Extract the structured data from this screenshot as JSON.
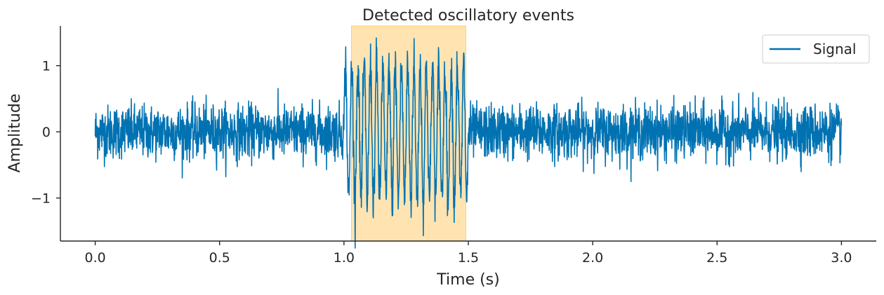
{
  "chart_data": {
    "type": "line",
    "title": "Detected oscillatory events",
    "xlabel": "Time (s)",
    "ylabel": "Amplitude",
    "xlim": [
      -0.14,
      3.14
    ],
    "ylim": [
      -1.65,
      1.6
    ],
    "x_ticks": [
      0.0,
      0.5,
      1.0,
      1.5,
      2.0,
      2.5,
      3.0
    ],
    "x_tick_labels": [
      "0.0",
      "0.5",
      "1.0",
      "1.5",
      "2.0",
      "2.5",
      "3.0"
    ],
    "y_ticks": [
      1,
      0,
      -1
    ],
    "y_tick_labels": [
      "1",
      "0",
      "−1"
    ],
    "grid": false,
    "legend": {
      "position": "top-right",
      "entries": [
        "Signal"
      ]
    },
    "series": [
      {
        "name": "Signal",
        "color": "#0072b2",
        "sample_rate_hz": 1000,
        "duration_s": 3.0,
        "noise_std": 0.2,
        "oscillation": {
          "start": 1.0,
          "end": 1.5,
          "frequency_hz": 40,
          "amplitude": 1.0
        }
      }
    ],
    "highlighted_events": [
      {
        "start": 1.03,
        "end": 1.49,
        "color": "#ffa500",
        "opacity": 0.3
      }
    ]
  }
}
